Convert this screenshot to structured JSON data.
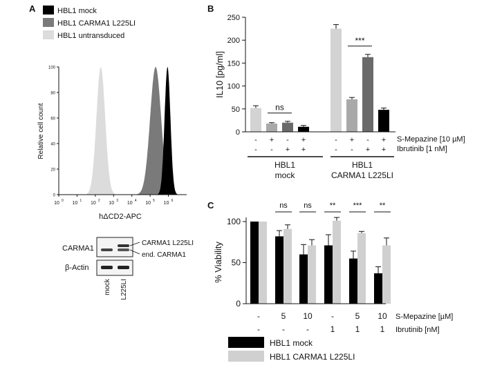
{
  "panels": {
    "a": "A",
    "b": "B",
    "c": "C"
  },
  "colors": {
    "mock": "#000000",
    "carma": "#7a7a7a",
    "untransduced": "#dcdcdc",
    "s_mepazine": "#a9a9a9",
    "combo": "#6a6a6a",
    "light": "#d0d0d0"
  },
  "panel_a": {
    "legend": [
      "HBL1 mock",
      "HBL1 CARMA1 L225LI",
      "HBL1 untransduced"
    ],
    "ylabel": "Relative cell count",
    "y_ticks": [
      "0",
      "20",
      "40",
      "60",
      "80",
      "100"
    ],
    "xlabel": "hΔCD2-APC",
    "x_ticks": [
      {
        "base": "10",
        "exp": "0"
      },
      {
        "base": "10",
        "exp": "1"
      },
      {
        "base": "10",
        "exp": "2"
      },
      {
        "base": "10",
        "exp": "3"
      },
      {
        "base": "10",
        "exp": "4"
      },
      {
        "base": "10",
        "exp": "5"
      },
      {
        "base": "10",
        "exp": "6"
      }
    ],
    "western": {
      "row1_label": "CARMA1",
      "row2_label": "β-Actin",
      "band_upper_label": "CARMA1 L225LI",
      "band_lower_label": "end. CARMA1",
      "lanes": [
        "mock",
        "L225LI"
      ]
    }
  },
  "chart_data": [
    {
      "type": "histogram",
      "panel": "A",
      "xlabel": "hΔCD2-APC",
      "ylabel": "Relative cell count",
      "x_scale": "log",
      "xlim": [
        1,
        10000000
      ],
      "ylim": [
        0,
        100
      ],
      "series": [
        {
          "name": "HBL1 untransduced",
          "peak_log10": 2.3,
          "width_log10": 0.24
        },
        {
          "name": "HBL1 CARMA1 L225LI",
          "peak_log10": 5.3,
          "width_log10": 0.3
        },
        {
          "name": "HBL1 mock",
          "peak_log10": 5.95,
          "width_log10": 0.16
        }
      ]
    },
    {
      "type": "bar",
      "panel": "B",
      "ylabel": "IL10 [pg/ml]",
      "ylim": [
        0,
        250
      ],
      "y_ticks": [
        "0",
        "50",
        "100",
        "150",
        "200",
        "250"
      ],
      "condition_labels": [
        "S-Mepazine [10 µM]",
        "Ibrutinib [1 nM]"
      ],
      "s_mepazine_row": [
        "-",
        "+",
        "-",
        "+",
        "-",
        "+",
        "-",
        "+"
      ],
      "ibrutinib_row": [
        "-",
        "-",
        "+",
        "+",
        "-",
        "-",
        "+",
        "+"
      ],
      "group_labels": [
        {
          "line1": "HBL1",
          "line2": "mock"
        },
        {
          "line1": "HBL1",
          "line2": "CARMA1 L225LI"
        }
      ],
      "values": [
        52,
        18,
        20,
        11,
        225,
        71,
        163,
        48
      ],
      "errors": [
        5,
        2,
        3,
        3,
        9,
        4,
        6,
        4
      ],
      "bar_colors": [
        "#d3d3d3",
        "#a9a9a9",
        "#6a6a6a",
        "#000000",
        "#d3d3d3",
        "#a9a9a9",
        "#6a6a6a",
        "#000000"
      ],
      "annotations": [
        {
          "text": "ns",
          "between": [
            1,
            2
          ]
        },
        {
          "text": "***",
          "between": [
            5,
            6
          ]
        }
      ]
    },
    {
      "type": "bar",
      "panel": "C",
      "ylabel": "% Viability",
      "ylim": [
        0,
        100
      ],
      "y_ticks": [
        "0",
        "50",
        "100"
      ],
      "s_mepazine_label": "S-Mepazine [µM]",
      "ibrutinib_label": "Ibrutinib [nM]",
      "s_mepazine_row": [
        "-",
        "5",
        "10",
        "-",
        "5",
        "10"
      ],
      "ibrutinib_row": [
        "-",
        "-",
        "-",
        "1",
        "1",
        "1"
      ],
      "series": [
        {
          "name": "HBL1 mock",
          "color": "#000000",
          "values": [
            100,
            82,
            60,
            71,
            55,
            37
          ],
          "errors": [
            0,
            7,
            12,
            13,
            9,
            8
          ]
        },
        {
          "name": "HBL1 CARMA1 L225LI",
          "color": "#d0d0d0",
          "values": [
            100,
            91,
            71,
            101,
            86,
            71
          ],
          "errors": [
            0,
            5,
            7,
            4,
            2,
            9
          ]
        }
      ],
      "significance": [
        "",
        "ns",
        "ns",
        "**",
        "***",
        "**"
      ]
    }
  ]
}
